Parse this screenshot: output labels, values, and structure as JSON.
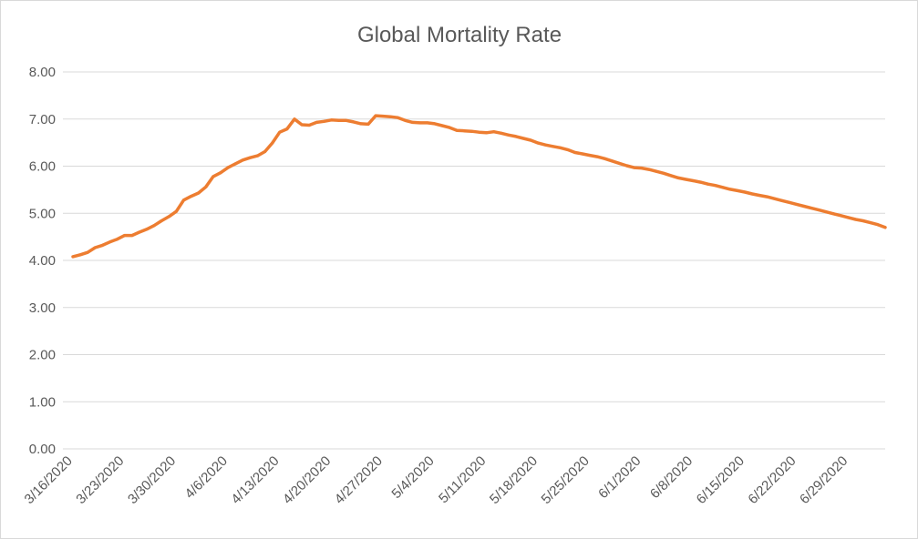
{
  "chart_data": {
    "type": "line",
    "title": "Global Mortality Rate",
    "xlabel": "",
    "ylabel": "",
    "ylim": [
      0,
      8
    ],
    "yticks": [
      "0.00",
      "1.00",
      "2.00",
      "3.00",
      "4.00",
      "5.00",
      "6.00",
      "7.00",
      "8.00"
    ],
    "x_tick_labels": [
      "3/16/2020",
      "3/23/2020",
      "3/30/2020",
      "4/6/2020",
      "4/13/2020",
      "4/20/2020",
      "4/27/2020",
      "5/4/2020",
      "5/11/2020",
      "5/18/2020",
      "5/25/2020",
      "6/1/2020",
      "6/8/2020",
      "6/15/2020",
      "6/22/2020",
      "6/29/2020"
    ],
    "x_start": "3/16/2020",
    "x_end": "7/3/2020",
    "grid": true,
    "legend": "none",
    "series": [
      {
        "color": "#ED7D31",
        "values": [
          4.08,
          4.12,
          4.17,
          4.27,
          4.32,
          4.39,
          4.45,
          4.53,
          4.53,
          4.6,
          4.66,
          4.74,
          4.84,
          4.93,
          5.04,
          5.28,
          5.36,
          5.43,
          5.56,
          5.78,
          5.86,
          5.97,
          6.05,
          6.13,
          6.18,
          6.22,
          6.31,
          6.49,
          6.72,
          6.79,
          7.0,
          6.88,
          6.87,
          6.93,
          6.95,
          6.98,
          6.97,
          6.97,
          6.94,
          6.9,
          6.89,
          7.07,
          7.06,
          7.05,
          7.03,
          6.97,
          6.93,
          6.92,
          6.92,
          6.9,
          6.86,
          6.82,
          6.76,
          6.75,
          6.74,
          6.72,
          6.71,
          6.73,
          6.7,
          6.66,
          6.63,
          6.59,
          6.55,
          6.49,
          6.45,
          6.42,
          6.39,
          6.35,
          6.29,
          6.26,
          6.23,
          6.2,
          6.16,
          6.11,
          6.06,
          6.01,
          5.97,
          5.96,
          5.93,
          5.89,
          5.85,
          5.8,
          5.75,
          5.72,
          5.69,
          5.66,
          5.62,
          5.59,
          5.55,
          5.51,
          5.48,
          5.45,
          5.41,
          5.38,
          5.35,
          5.31,
          5.27,
          5.23,
          5.19,
          5.15,
          5.11,
          5.07,
          5.03,
          4.99,
          4.95,
          4.91,
          4.87,
          4.84,
          4.8,
          4.76,
          4.7
        ]
      }
    ]
  }
}
